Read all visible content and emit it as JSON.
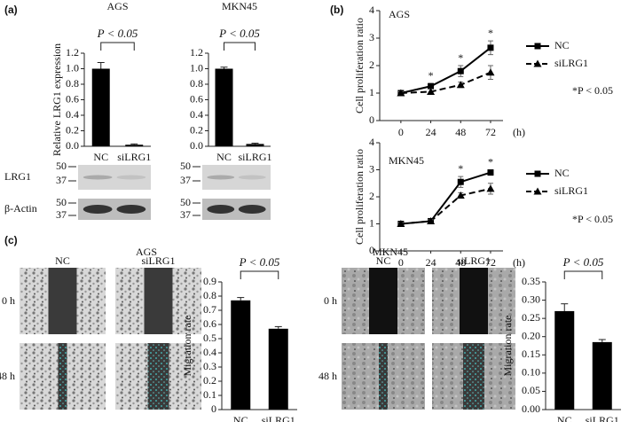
{
  "panels": [
    "(a)",
    "(b)",
    "(c)"
  ],
  "blots": {
    "rows": [
      "LRG1",
      "β-Actin"
    ],
    "markers": [
      "50",
      "37"
    ]
  },
  "micrographs": {
    "groups": [
      "AGS",
      "MKN45"
    ],
    "columns": [
      "NC",
      "siLRG1"
    ],
    "rows": [
      "0 h",
      "48 h"
    ]
  },
  "chart_data": [
    {
      "type": "bar",
      "title": "AGS",
      "ylabel": "Relative LRG1 expression",
      "significance": "P < 0.05",
      "categories": [
        "NC",
        "siLRG1"
      ],
      "values": [
        1.0,
        0.02
      ],
      "errors": [
        0.08,
        0.01
      ],
      "color": "#000000",
      "ylim": [
        0,
        1.2
      ],
      "yticks": [
        {
          "value": 0,
          "label": "0.0"
        },
        0.2,
        0.4,
        0.6,
        0.8,
        {
          "value": 1,
          "label": "1.0"
        },
        1.2
      ]
    },
    {
      "type": "bar",
      "title": "MKN45",
      "significance": "P < 0.05",
      "categories": [
        "NC",
        "siLRG1"
      ],
      "values": [
        1.0,
        0.03
      ],
      "errors": [
        0.02,
        0.01
      ],
      "color": "#000000",
      "ylim": [
        0,
        1.2
      ],
      "yticks": [
        {
          "value": 0,
          "label": "0.0"
        },
        0.2,
        0.4,
        0.6,
        0.8,
        {
          "value": 1,
          "label": "1.0"
        },
        1.2
      ]
    },
    {
      "type": "line",
      "title": "AGS",
      "ylabel": "Cell proliferation ratio",
      "xunit": "(h)",
      "note": "*P < 0.05",
      "legend": "right",
      "x": [
        0,
        24,
        48,
        72
      ],
      "xlim": [
        -17,
        82
      ],
      "xticks": [
        0,
        24,
        48,
        72
      ],
      "ylim": [
        0,
        4
      ],
      "yticks": [
        0,
        1,
        2,
        3,
        4
      ],
      "stars": [
        null,
        "*",
        "*",
        "*"
      ],
      "series": [
        {
          "name": "NC",
          "color": "#000000",
          "style": "solid",
          "marker": "square",
          "values": [
            1.0,
            1.25,
            1.8,
            2.65
          ],
          "errors": [
            0.05,
            0.1,
            0.2,
            0.25
          ]
        },
        {
          "name": "siLRG1",
          "color": "#000000",
          "style": "dashed",
          "marker": "triangle",
          "values": [
            1.0,
            1.05,
            1.3,
            1.75
          ],
          "errors": [
            0.05,
            0.1,
            0.1,
            0.25
          ]
        }
      ]
    },
    {
      "type": "line",
      "title": "MKN45",
      "ylabel": "Cell proliferation ratio",
      "xunit": "(h)",
      "note": "*P < 0.05",
      "legend": "right",
      "x": [
        0,
        24,
        48,
        72
      ],
      "xlim": [
        -17,
        82
      ],
      "xticks": [
        0,
        24,
        48,
        72
      ],
      "ylim": [
        0,
        4
      ],
      "yticks": [
        0,
        1,
        2,
        3,
        4
      ],
      "stars": [
        null,
        null,
        "*",
        "*"
      ],
      "series": [
        {
          "name": "NC",
          "color": "#000000",
          "style": "solid",
          "marker": "square",
          "values": [
            1.0,
            1.1,
            2.55,
            2.9
          ],
          "errors": [
            0.05,
            0.05,
            0.2,
            0.1
          ]
        },
        {
          "name": "siLRG1",
          "color": "#000000",
          "style": "dashed",
          "marker": "triangle",
          "values": [
            1.0,
            1.1,
            2.05,
            2.3
          ],
          "errors": [
            0.05,
            0.05,
            0.1,
            0.2
          ]
        }
      ]
    },
    {
      "type": "bar",
      "ylabel": "Migration rate",
      "significance": "P < 0.05",
      "categories": [
        "NC",
        "siLRG1"
      ],
      "values": [
        0.77,
        0.57
      ],
      "errors": [
        0.02,
        0.015
      ],
      "color": "#000000",
      "ylim": [
        0,
        0.9
      ],
      "yticks": [
        0,
        0.1,
        0.2,
        0.3,
        0.4,
        0.5,
        0.6,
        0.7,
        0.8,
        0.9
      ]
    },
    {
      "type": "bar",
      "ylabel": "Migration rate",
      "significance": "P < 0.05",
      "categories": [
        "NC",
        "siLRG1"
      ],
      "values": [
        0.27,
        0.185
      ],
      "errors": [
        0.02,
        0.007
      ],
      "color": "#000000",
      "ylim": [
        0,
        0.35
      ],
      "yticks": [
        {
          "value": 0,
          "label": "0.00"
        },
        0.05,
        {
          "value": 0.1,
          "label": "0.10"
        },
        0.15,
        {
          "value": 0.2,
          "label": "0.20"
        },
        0.25,
        {
          "value": 0.3,
          "label": "0.30"
        },
        0.35
      ]
    }
  ]
}
